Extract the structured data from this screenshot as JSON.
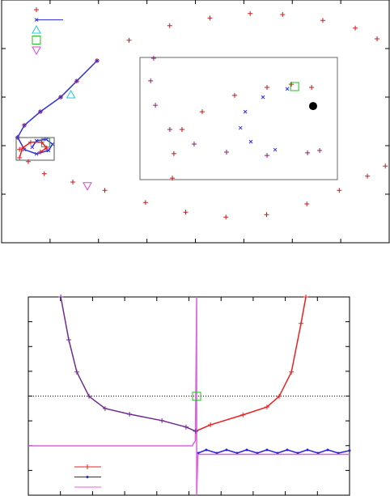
{
  "chart_data": [
    {
      "type": "scatter",
      "xlim": [
        0,
        8
      ],
      "ylim": [
        0,
        5
      ],
      "xticks": [
        1,
        2,
        3,
        4,
        5,
        6,
        7
      ],
      "yticks": [
        1,
        2,
        3,
        4
      ],
      "legend": "top-left",
      "series": [
        {
          "color": "#d01818",
          "marker": "+",
          "line": false,
          "legend": true,
          "x": [
            7.75,
            7.3,
            6.63,
            5.8,
            5.13,
            4.3,
            3.47,
            2.63,
            1.97,
            1.55,
            1.22,
            0.8,
            0.47,
            0.33,
            0.37,
            0.55,
            0.88,
            1.47,
            2.13,
            2.97,
            3.8,
            4.63,
            5.47,
            6.3,
            6.97,
            7.55,
            7.92
          ],
          "y": [
            4.2,
            4.42,
            4.58,
            4.7,
            4.72,
            4.63,
            4.47,
            4.17,
            3.75,
            3.33,
            3.0,
            2.7,
            2.42,
            2.17,
            1.92,
            1.67,
            1.42,
            1.25,
            1.08,
            0.83,
            0.63,
            0.53,
            0.58,
            0.8,
            1.08,
            1.37,
            1.58
          ]
        },
        {
          "color": "#3030e0",
          "marker": "x",
          "line": true,
          "legend": true,
          "x": [
            1.97,
            1.55,
            1.22,
            0.8,
            0.47,
            0.33,
            0.47,
            0.72,
            0.97,
            1.05,
            0.92,
            0.72,
            0.63
          ],
          "y": [
            3.75,
            3.33,
            3.0,
            2.7,
            2.42,
            2.17,
            1.92,
            1.83,
            1.9,
            2.03,
            2.13,
            2.1,
            1.97
          ]
        },
        {
          "color": "#20c8d8",
          "marker": "triangle",
          "line": false,
          "legend": true,
          "x": [
            1.43
          ],
          "y": [
            3.05
          ]
        },
        {
          "color": "#20c020",
          "marker": "square",
          "line": false,
          "legend": true,
          "x": [
            0.91
          ],
          "y": [
            2.06
          ]
        },
        {
          "color": "#e040e0",
          "marker": "triangle-down",
          "line": false,
          "legend": true,
          "x": [
            1.77
          ],
          "y": [
            1.17
          ]
        },
        {
          "color": "#e82020",
          "marker": "+",
          "line": true,
          "legend": false,
          "x": [
            0.37,
            0.43,
            0.6,
            0.83,
            0.93,
            0.8
          ],
          "y": [
            1.75,
            1.95,
            2.07,
            2.07,
            1.95,
            1.87
          ]
        }
      ]
    },
    {
      "type": "scatter",
      "xlim": [
        0.3,
        1.08
      ],
      "ylim": [
        1.7,
        2.17
      ],
      "series": [
        {
          "color": "#8a2070",
          "marker": "+",
          "line": false,
          "legend": false,
          "x": [
            0.354,
            0.342,
            0.361,
            0.418,
            0.514,
            0.642,
            0.802,
            0.962,
            1.01
          ],
          "y": [
            2.167,
            2.08,
            1.986,
            1.893,
            1.837,
            1.806,
            1.793,
            1.803,
            1.812
          ]
        },
        {
          "color": "#c01818",
          "marker": "+",
          "line": false,
          "legend": false,
          "x": [
            0.428,
            0.434,
            0.466,
            0.546,
            0.674,
            0.802,
            0.898,
            0.978
          ],
          "y": [
            1.706,
            1.8,
            1.893,
            1.961,
            2.024,
            2.055,
            2.067,
            2.055
          ]
        },
        {
          "color": "#3030e0",
          "marker": "x",
          "line": false,
          "legend": false,
          "x": [
            0.882,
            0.786,
            0.716,
            0.697,
            0.738,
            0.834
          ],
          "y": [
            2.049,
            2.017,
            1.961,
            1.899,
            1.846,
            1.815
          ]
        },
        {
          "color": "#20c020",
          "marker": "square",
          "line": false,
          "legend": false,
          "x": [
            0.911
          ],
          "y": [
            2.058
          ]
        },
        {
          "color": "#000000",
          "marker": "disc",
          "line": false,
          "legend": false,
          "x": [
            0.984
          ],
          "y": [
            1.983
          ]
        }
      ]
    },
    {
      "type": "scatter",
      "xlim": [
        0,
        10
      ],
      "ylim": [
        0,
        8
      ],
      "xticks": [
        1,
        2,
        3,
        4,
        5,
        6,
        7,
        8,
        9
      ],
      "yticks": [
        1,
        2,
        3,
        4,
        5,
        6,
        7
      ],
      "hline": 4,
      "legend": "bottom-left",
      "series": [
        {
          "color": "#e82020",
          "marker": "+",
          "line": true,
          "legend": true,
          "x": [
            5.21,
            5.67,
            6.68,
            7.43,
            7.81,
            8.19,
            8.49,
            8.64
          ],
          "y": [
            2.58,
            2.84,
            3.24,
            3.56,
            3.99,
            4.97,
            6.93,
            8.0
          ]
        },
        {
          "color": "#2020e0",
          "marker": "dot",
          "line": true,
          "legend": true,
          "x": [
            5.29,
            5.54,
            5.87,
            6.17,
            6.5,
            6.8,
            7.13,
            7.43,
            7.76,
            8.06,
            8.39,
            8.69,
            9.02,
            9.32,
            9.65,
            10.0
          ],
          "y": [
            1.7,
            1.83,
            1.7,
            1.83,
            1.7,
            1.83,
            1.7,
            1.83,
            1.7,
            1.83,
            1.7,
            1.83,
            1.7,
            1.83,
            1.7,
            1.8
          ]
        },
        {
          "color": "#e060e0",
          "marker": "none",
          "line": true,
          "legend": true,
          "x": [
            0,
            5.1,
            5.2,
            5.24,
            5.24,
            5.28,
            10.0
          ],
          "y": [
            1.99,
            1.99,
            2.2,
            8.0,
            0,
            1.65,
            1.65
          ]
        },
        {
          "color": "#702a90",
          "marker": "+",
          "line": true,
          "legend": false,
          "x": [
            1.01,
            1.26,
            1.51,
            1.89,
            2.39,
            3.15,
            4.16,
            4.91,
            5.21
          ],
          "y": [
            8.0,
            6.27,
            4.97,
            3.99,
            3.5,
            3.27,
            3.01,
            2.75,
            2.58
          ]
        },
        {
          "color": "#20c020",
          "marker": "square",
          "line": false,
          "legend": false,
          "x": [
            5.24
          ],
          "y": [
            3.99
          ]
        }
      ]
    }
  ]
}
